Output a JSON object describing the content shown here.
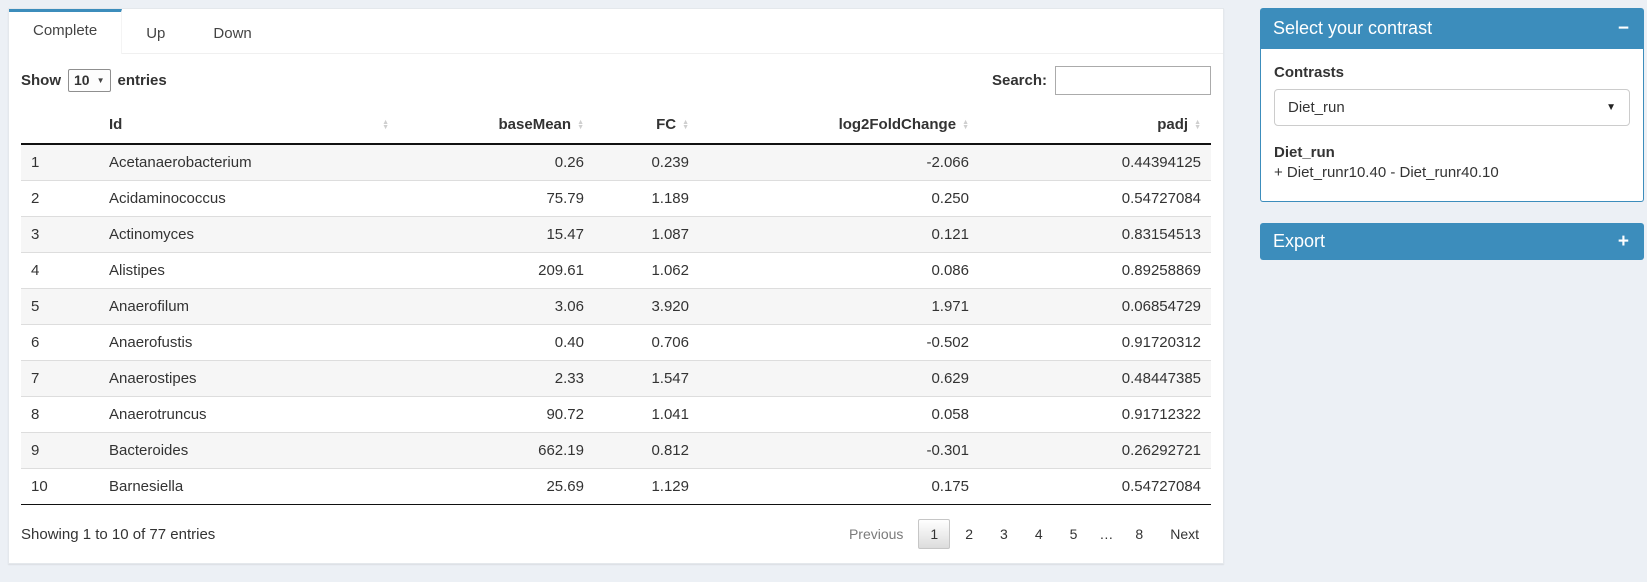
{
  "colors": {
    "primary": "#3c8dbc",
    "page_bg": "#ecf0f5",
    "stripe": "#f6f6f6"
  },
  "tabs": {
    "items": [
      {
        "label": "Complete",
        "active": true
      },
      {
        "label": "Up",
        "active": false
      },
      {
        "label": "Down",
        "active": false
      }
    ]
  },
  "table": {
    "length": {
      "show_label": "Show",
      "value": "10",
      "entries_label": "entries"
    },
    "search": {
      "label": "Search:",
      "value": ""
    },
    "columns": [
      {
        "label": "",
        "align": "left",
        "sortable": false
      },
      {
        "label": "Id",
        "align": "left",
        "sortable": true
      },
      {
        "label": "baseMean",
        "align": "right",
        "sortable": true
      },
      {
        "label": "FC",
        "align": "right",
        "sortable": true
      },
      {
        "label": "log2FoldChange",
        "align": "right",
        "sortable": true
      },
      {
        "label": "padj",
        "align": "right",
        "sortable": true
      }
    ],
    "rows": [
      [
        "1",
        "Acetanaerobacterium",
        "0.26",
        "0.239",
        "-2.066",
        "0.44394125"
      ],
      [
        "2",
        "Acidaminococcus",
        "75.79",
        "1.189",
        "0.250",
        "0.54727084"
      ],
      [
        "3",
        "Actinomyces",
        "15.47",
        "1.087",
        "0.121",
        "0.83154513"
      ],
      [
        "4",
        "Alistipes",
        "209.61",
        "1.062",
        "0.086",
        "0.89258869"
      ],
      [
        "5",
        "Anaerofilum",
        "3.06",
        "3.920",
        "1.971",
        "0.06854729"
      ],
      [
        "6",
        "Anaerofustis",
        "0.40",
        "0.706",
        "-0.502",
        "0.91720312"
      ],
      [
        "7",
        "Anaerostipes",
        "2.33",
        "1.547",
        "0.629",
        "0.48447385"
      ],
      [
        "8",
        "Anaerotruncus",
        "90.72",
        "1.041",
        "0.058",
        "0.91712322"
      ],
      [
        "9",
        "Bacteroides",
        "662.19",
        "0.812",
        "-0.301",
        "0.26292721"
      ],
      [
        "10",
        "Barnesiella",
        "25.69",
        "1.129",
        "0.175",
        "0.54727084"
      ]
    ],
    "info": "Showing 1 to 10 of 77 entries",
    "pagination": [
      {
        "label": "Previous",
        "state": "disabled"
      },
      {
        "label": "1",
        "state": "active"
      },
      {
        "label": "2",
        "state": "normal"
      },
      {
        "label": "3",
        "state": "normal"
      },
      {
        "label": "4",
        "state": "normal"
      },
      {
        "label": "5",
        "state": "normal"
      },
      {
        "label": "…",
        "state": "ellipsis"
      },
      {
        "label": "8",
        "state": "normal"
      },
      {
        "label": "Next",
        "state": "normal"
      }
    ]
  },
  "contrast_box": {
    "title": "Select your contrast",
    "collapse_icon": "−",
    "contrasts_label": "Contrasts",
    "selected": "Diet_run",
    "contrast_name": "Diet_run",
    "contrast_formula": "+ Diet_runr10.40 - Diet_runr40.10"
  },
  "export_box": {
    "title": "Export",
    "expand_icon": "+"
  }
}
